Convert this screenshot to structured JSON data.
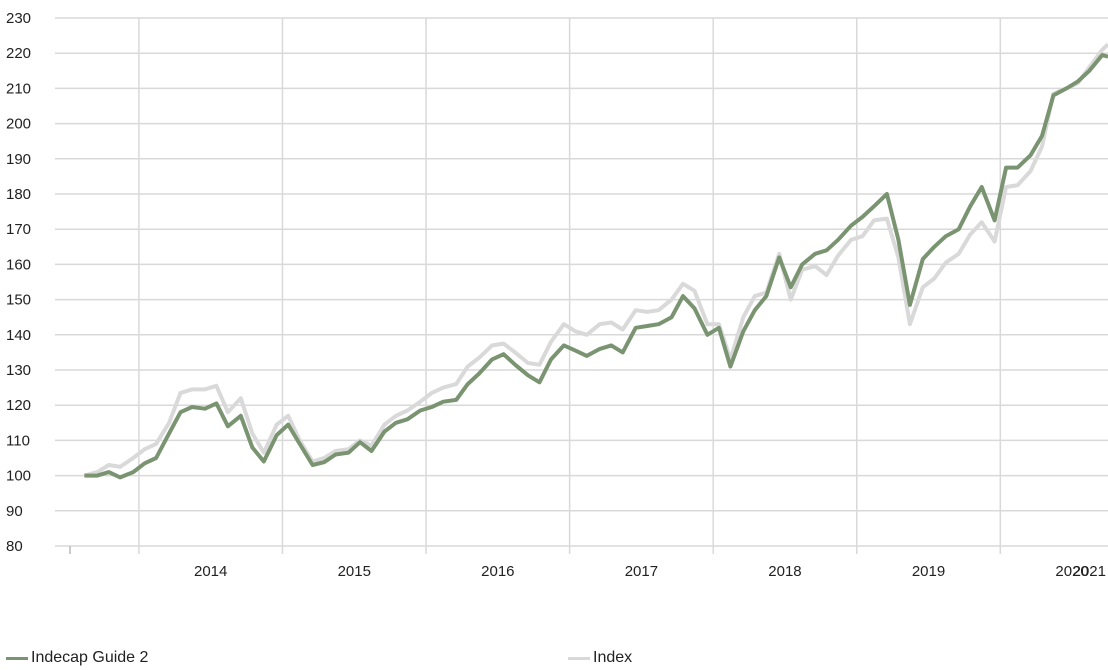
{
  "chart_data": {
    "type": "line",
    "title": "",
    "xlabel": "",
    "ylabel": "",
    "ylim": [
      80,
      230
    ],
    "y_ticks": [
      80,
      90,
      100,
      110,
      120,
      130,
      140,
      150,
      160,
      170,
      180,
      190,
      200,
      210,
      220,
      230
    ],
    "year_labels": [
      "2014",
      "2015",
      "2016",
      "2017",
      "2018",
      "2019",
      "2020",
      "2021"
    ],
    "grid": true,
    "legend_position": "bottom",
    "colors": {
      "guide": "#7a9471",
      "index": "#d9d9d9",
      "grid": "#d9d9d9"
    },
    "series": [
      {
        "name": "Indecap Guide 2",
        "color": "#7a9471",
        "points": [
          [
            2013.62,
            100
          ],
          [
            2013.71,
            100
          ],
          [
            2013.79,
            101
          ],
          [
            2013.87,
            99.5
          ],
          [
            2013.96,
            101
          ],
          [
            2014.04,
            103.5
          ],
          [
            2014.12,
            105
          ],
          [
            2014.21,
            112
          ],
          [
            2014.29,
            118
          ],
          [
            2014.37,
            119.5
          ],
          [
            2014.46,
            119
          ],
          [
            2014.54,
            120.5
          ],
          [
            2014.62,
            114
          ],
          [
            2014.71,
            117
          ],
          [
            2014.79,
            108
          ],
          [
            2014.87,
            104
          ],
          [
            2014.96,
            111.5
          ],
          [
            2015.04,
            114.5
          ],
          [
            2015.12,
            109
          ],
          [
            2015.21,
            103
          ],
          [
            2015.29,
            103.8
          ],
          [
            2015.37,
            106
          ],
          [
            2015.46,
            106.5
          ],
          [
            2015.54,
            109.5
          ],
          [
            2015.62,
            107
          ],
          [
            2015.71,
            112.5
          ],
          [
            2015.79,
            115
          ],
          [
            2015.87,
            116
          ],
          [
            2015.96,
            118.5
          ],
          [
            2016.04,
            119.5
          ],
          [
            2016.12,
            121
          ],
          [
            2016.21,
            121.5
          ],
          [
            2016.29,
            126
          ],
          [
            2016.37,
            129
          ],
          [
            2016.46,
            133
          ],
          [
            2016.54,
            134.5
          ],
          [
            2016.62,
            131.5
          ],
          [
            2016.71,
            128.5
          ],
          [
            2016.79,
            126.5
          ],
          [
            2016.87,
            133
          ],
          [
            2016.96,
            137
          ],
          [
            2017.04,
            135.5
          ],
          [
            2017.12,
            134
          ],
          [
            2017.21,
            136
          ],
          [
            2017.29,
            137
          ],
          [
            2017.37,
            135
          ],
          [
            2017.46,
            142
          ],
          [
            2017.54,
            142.5
          ],
          [
            2017.62,
            143
          ],
          [
            2017.71,
            145
          ],
          [
            2017.79,
            151
          ],
          [
            2017.87,
            147.5
          ],
          [
            2017.96,
            140
          ],
          [
            2018.04,
            142
          ],
          [
            2018.12,
            131
          ],
          [
            2018.21,
            141
          ],
          [
            2018.29,
            147
          ],
          [
            2018.37,
            151
          ],
          [
            2018.46,
            162
          ],
          [
            2018.54,
            153.5
          ],
          [
            2018.62,
            160
          ],
          [
            2018.71,
            163
          ],
          [
            2018.79,
            164
          ],
          [
            2018.87,
            167
          ],
          [
            2018.96,
            171
          ],
          [
            2019.04,
            173.5
          ],
          [
            2019.12,
            176.5
          ],
          [
            2019.21,
            180
          ],
          [
            2019.29,
            167
          ],
          [
            2019.37,
            148.5
          ],
          [
            2019.46,
            161.5
          ],
          [
            2019.54,
            165
          ],
          [
            2019.62,
            168
          ],
          [
            2019.71,
            170
          ],
          [
            2019.79,
            176.5
          ],
          [
            2019.87,
            182
          ],
          [
            2019.96,
            172.5
          ],
          [
            2020.04,
            187.5
          ],
          [
            2020.12,
            187.5
          ],
          [
            2020.21,
            191
          ],
          [
            2020.29,
            196.5
          ],
          [
            2020.37,
            208
          ],
          [
            2020.46,
            210
          ],
          [
            2020.54,
            212
          ],
          [
            2020.62,
            215
          ],
          [
            2020.71,
            219.5
          ],
          [
            2020.75,
            219
          ]
        ]
      },
      {
        "name": "Index",
        "color": "#d9d9d9",
        "points": [
          [
            2013.62,
            100
          ],
          [
            2013.71,
            101
          ],
          [
            2013.79,
            103
          ],
          [
            2013.87,
            102.5
          ],
          [
            2013.96,
            105
          ],
          [
            2014.04,
            107.5
          ],
          [
            2014.12,
            109
          ],
          [
            2014.21,
            115
          ],
          [
            2014.29,
            123.5
          ],
          [
            2014.37,
            124.5
          ],
          [
            2014.46,
            124.5
          ],
          [
            2014.54,
            125.5
          ],
          [
            2014.62,
            118
          ],
          [
            2014.71,
            122
          ],
          [
            2014.79,
            112
          ],
          [
            2014.87,
            106.5
          ],
          [
            2014.96,
            114.5
          ],
          [
            2015.04,
            117
          ],
          [
            2015.12,
            110
          ],
          [
            2015.21,
            104
          ],
          [
            2015.29,
            105
          ],
          [
            2015.37,
            107
          ],
          [
            2015.46,
            107.5
          ],
          [
            2015.54,
            110
          ],
          [
            2015.62,
            108.5
          ],
          [
            2015.71,
            114.5
          ],
          [
            2015.79,
            117
          ],
          [
            2015.87,
            118.5
          ],
          [
            2015.96,
            121
          ],
          [
            2016.04,
            123.5
          ],
          [
            2016.12,
            125
          ],
          [
            2016.21,
            126
          ],
          [
            2016.29,
            131
          ],
          [
            2016.37,
            133.5
          ],
          [
            2016.46,
            137
          ],
          [
            2016.54,
            137.5
          ],
          [
            2016.62,
            135
          ],
          [
            2016.71,
            132
          ],
          [
            2016.79,
            131.5
          ],
          [
            2016.87,
            138
          ],
          [
            2016.96,
            143
          ],
          [
            2017.04,
            141
          ],
          [
            2017.12,
            140
          ],
          [
            2017.21,
            143
          ],
          [
            2017.29,
            143.5
          ],
          [
            2017.37,
            141.5
          ],
          [
            2017.46,
            147
          ],
          [
            2017.54,
            146.5
          ],
          [
            2017.62,
            147
          ],
          [
            2017.71,
            150
          ],
          [
            2017.79,
            154.5
          ],
          [
            2017.87,
            152.5
          ],
          [
            2017.96,
            143
          ],
          [
            2018.04,
            143
          ],
          [
            2018.12,
            133
          ],
          [
            2018.21,
            145
          ],
          [
            2018.29,
            151
          ],
          [
            2018.37,
            152
          ],
          [
            2018.46,
            163
          ],
          [
            2018.54,
            150
          ],
          [
            2018.62,
            158.5
          ],
          [
            2018.71,
            159.5
          ],
          [
            2018.79,
            157
          ],
          [
            2018.87,
            162.5
          ],
          [
            2018.96,
            167
          ],
          [
            2019.04,
            168
          ],
          [
            2019.12,
            172.5
          ],
          [
            2019.21,
            173
          ],
          [
            2019.29,
            162
          ],
          [
            2019.37,
            143
          ],
          [
            2019.46,
            153.5
          ],
          [
            2019.54,
            156
          ],
          [
            2019.62,
            160.5
          ],
          [
            2019.71,
            163
          ],
          [
            2019.79,
            168.5
          ],
          [
            2019.87,
            172
          ],
          [
            2019.96,
            166.5
          ],
          [
            2020.04,
            182
          ],
          [
            2020.12,
            182.5
          ],
          [
            2020.21,
            186.5
          ],
          [
            2020.29,
            193.5
          ],
          [
            2020.37,
            208.5
          ],
          [
            2020.46,
            210
          ],
          [
            2020.54,
            211.5
          ],
          [
            2020.62,
            216
          ],
          [
            2020.71,
            221
          ],
          [
            2020.75,
            222.5
          ]
        ]
      }
    ]
  },
  "legend": [
    {
      "label": "Indecap Guide 2",
      "color": "#7a9471"
    },
    {
      "label": "Index",
      "color": "#d9d9d9"
    }
  ]
}
